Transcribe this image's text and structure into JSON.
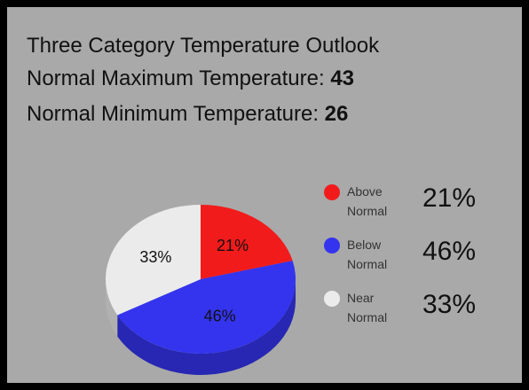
{
  "header": {
    "title": "Three Category Temperature Outlook",
    "max_label": "Normal Maximum Temperature:",
    "max_value": 43,
    "min_label": "Normal Minimum Temperature:",
    "min_value": 26
  },
  "chart_data": {
    "type": "pie",
    "categories": [
      "Above Normal",
      "Below Normal",
      "Near Normal"
    ],
    "values": [
      21,
      46,
      33
    ],
    "value_labels": [
      "21%",
      "46%",
      "33%"
    ],
    "colors": [
      "#f21b1b",
      "#3434ee",
      "#ebebeb"
    ]
  }
}
